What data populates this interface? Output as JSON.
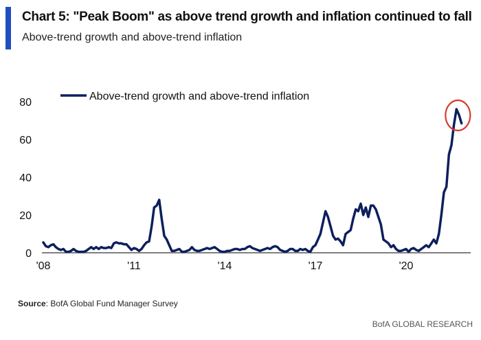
{
  "header": {
    "title": "Chart 5: \"Peak Boom\" as above trend growth and inflation continued to fall",
    "subtitle": "Above-trend growth and above-trend inflation",
    "accent_color": "#1f4fbf"
  },
  "footer": {
    "source_label": "Source",
    "source_text": ": BofA Global Fund Manager Survey",
    "brand": "BofA GLOBAL RESEARCH"
  },
  "chart_data": {
    "type": "line",
    "title": "Chart 5: \"Peak Boom\" as above trend growth and inflation continued to fall",
    "subtitle": "Above-trend growth and above-trend inflation",
    "xlabel": "",
    "ylabel": "",
    "ylim": [
      0,
      80
    ],
    "xlim": [
      2008.0,
      2022.4
    ],
    "yticks": [
      0,
      20,
      40,
      60,
      80
    ],
    "xticks": [
      {
        "value": 2008,
        "label": "'08"
      },
      {
        "value": 2011,
        "label": "'11"
      },
      {
        "value": 2014,
        "label": "'14"
      },
      {
        "value": 2017,
        "label": "'17"
      },
      {
        "value": 2020,
        "label": "'20"
      }
    ],
    "grid": false,
    "legend": {
      "position": "top-left",
      "entries": [
        "Above-trend growth and above-trend inflation"
      ]
    },
    "line_color": "#0d1f5c",
    "annotation": {
      "type": "circle",
      "color": "#d63a2f",
      "target": "2021 peak"
    },
    "start": "2008-01",
    "frequency": "monthly",
    "series": [
      {
        "name": "Above-trend growth and above-trend inflation",
        "values": [
          5.5,
          3.5,
          3,
          4,
          4.5,
          3,
          2,
          1.5,
          2,
          0.5,
          0.5,
          1,
          2,
          1,
          0.5,
          0.5,
          0.5,
          1,
          2,
          3,
          2,
          3,
          2,
          3,
          2.5,
          2.5,
          3,
          2.5,
          5,
          5.5,
          5,
          5,
          4.5,
          4.5,
          3,
          1.5,
          2.5,
          2,
          1,
          2,
          4,
          5.5,
          6,
          14,
          24,
          25,
          28,
          18,
          9,
          7,
          4,
          1,
          1,
          1.5,
          2,
          0.5,
          0.5,
          1,
          1.5,
          3,
          1.5,
          1,
          1,
          1.5,
          2,
          2.5,
          2,
          2.5,
          3,
          2,
          1,
          0.5,
          0.5,
          1,
          1,
          1.5,
          2,
          2,
          1.5,
          2,
          2,
          3,
          3.5,
          2.5,
          2,
          1.5,
          1,
          1.5,
          2,
          2.5,
          2,
          3,
          3.5,
          3,
          1.5,
          1,
          0.5,
          1,
          2,
          2,
          1,
          1,
          2,
          1.5,
          2,
          1,
          0.5,
          3,
          4,
          7,
          10,
          16,
          22,
          19,
          14,
          9,
          7,
          7.5,
          6,
          4,
          10,
          11,
          12,
          18,
          23,
          22,
          26,
          20,
          24,
          19,
          25,
          25,
          23,
          19,
          15,
          7,
          6,
          5,
          3,
          4,
          2,
          1,
          1,
          1.5,
          2,
          0.5,
          2,
          2.5,
          1.5,
          1,
          2,
          3,
          4,
          3,
          5,
          7,
          5,
          10,
          20,
          32,
          35,
          52,
          57,
          68,
          76,
          73,
          68.5
        ]
      }
    ]
  }
}
